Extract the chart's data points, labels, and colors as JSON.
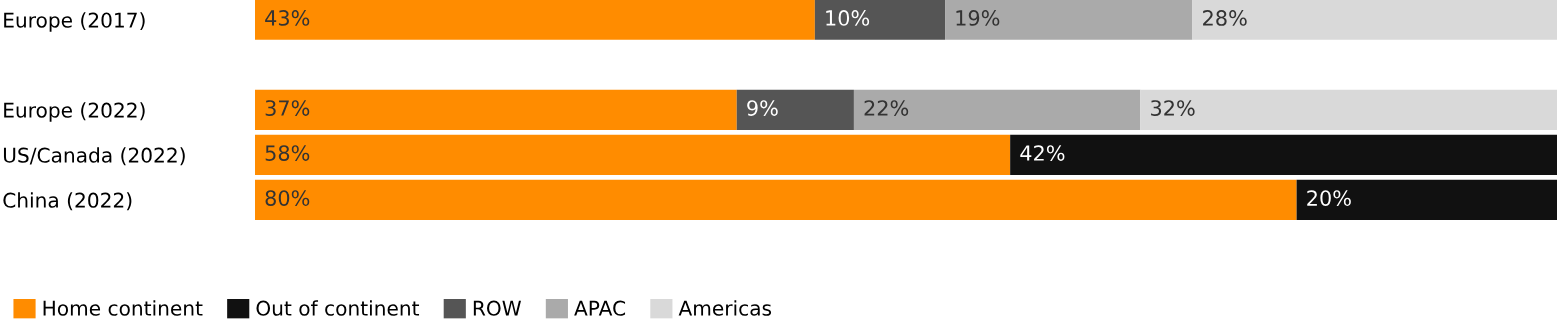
{
  "chart_data": {
    "type": "bar",
    "orientation": "horizontal",
    "stacked": true,
    "tick_labels": "y",
    "grid": false,
    "legend": "bottom left",
    "categories": [
      "Europe (2017)",
      null,
      "Europe (2022)",
      "US/Canada (2022)",
      "China (2022)"
    ],
    "series": [
      {
        "name": "Home continent",
        "color": "#ff8c00",
        "values": [
          43,
          null,
          37,
          58,
          80
        ],
        "value_labels": [
          "43%",
          null,
          "37%",
          "58%",
          "80%"
        ]
      },
      {
        "name": "Out of continent",
        "color": "#111111",
        "values": [
          null,
          null,
          null,
          42,
          20
        ],
        "value_labels": [
          null,
          null,
          null,
          "42%",
          "20%"
        ]
      },
      {
        "name": "ROW",
        "color": "#555555",
        "values": [
          10,
          null,
          9,
          null,
          null
        ],
        "value_labels": [
          "10%",
          null,
          "9%",
          null,
          null
        ]
      },
      {
        "name": "APAC",
        "color": "#aaaaaa",
        "values": [
          19,
          null,
          22,
          null,
          null
        ],
        "value_labels": [
          "19%",
          null,
          "22%",
          null,
          null
        ]
      },
      {
        "name": "Americas",
        "color": "#d9d9d9",
        "values": [
          28,
          null,
          32,
          null,
          null
        ],
        "value_labels": [
          "28%",
          null,
          "32%",
          null,
          null
        ]
      }
    ]
  }
}
